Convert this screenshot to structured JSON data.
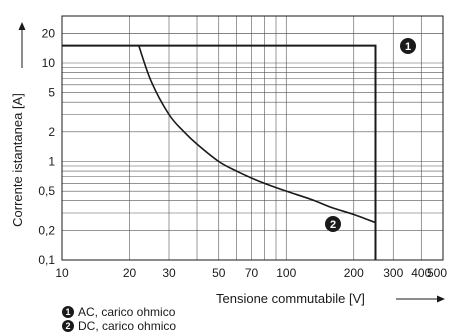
{
  "chart_data": {
    "type": "line",
    "xlabel": "Tensione commutabile [V]",
    "ylabel": "Corrente istantanea [A]",
    "x_scale": "log",
    "y_scale": "log",
    "xlim": [
      10,
      500
    ],
    "ylim": [
      0.1,
      30
    ],
    "grid": true,
    "x_ticks": [
      "10",
      "20",
      "30",
      "50",
      "70",
      "100",
      "200",
      "300",
      "400",
      "500"
    ],
    "x_tick_values": [
      10,
      20,
      30,
      50,
      70,
      100,
      200,
      300,
      400,
      500
    ],
    "y_ticks": [
      "20",
      "10",
      "5",
      "2",
      "1",
      "0,5",
      "0,2",
      "0,1"
    ],
    "y_tick_values": [
      20,
      10,
      5,
      2,
      1,
      0.5,
      0.2,
      0.1
    ],
    "series": [
      {
        "name": "AC, carico ohmico",
        "marker": "1",
        "x": [
          10,
          250,
          250
        ],
        "y": [
          15,
          15,
          0.1
        ]
      },
      {
        "name": "DC, carico ohmico",
        "marker": "2",
        "x": [
          22,
          25,
          30,
          35,
          40,
          50,
          60,
          70,
          80,
          100,
          130,
          160,
          200,
          250
        ],
        "y": [
          15,
          6.5,
          3.0,
          2.0,
          1.5,
          1.0,
          0.8,
          0.68,
          0.6,
          0.5,
          0.41,
          0.34,
          0.29,
          0.24
        ]
      }
    ]
  }
}
